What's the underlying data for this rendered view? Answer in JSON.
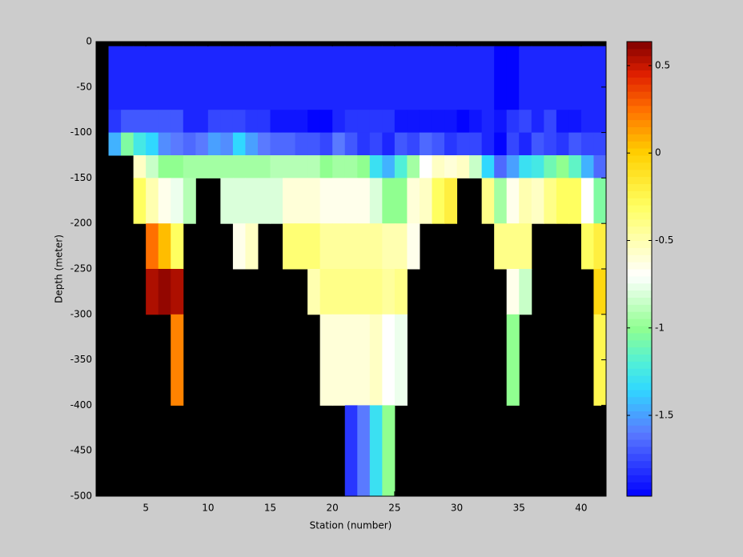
{
  "chart_data": {
    "type": "heatmap",
    "xlabel": "Station (number)",
    "ylabel": "Depth (meter)",
    "xlim": [
      1,
      42
    ],
    "ylim": [
      -500,
      0
    ],
    "xticks": [
      5,
      10,
      15,
      20,
      25,
      30,
      35,
      40
    ],
    "yticks": [
      0,
      -50,
      -100,
      -150,
      -200,
      -250,
      -300,
      -350,
      -400,
      -450,
      -500
    ],
    "x_edges": [
      2,
      3,
      4,
      5,
      6,
      7,
      8,
      9,
      10,
      11,
      12,
      13,
      14,
      15,
      16,
      17,
      18,
      19,
      20,
      21,
      22,
      23,
      24,
      25,
      26,
      27,
      28,
      29,
      30,
      31,
      32,
      33,
      34,
      35,
      36,
      37,
      38,
      39,
      40,
      41,
      42
    ],
    "y_edges": [
      -5,
      -75,
      -100,
      -125,
      -150,
      -200,
      -250,
      -300,
      -400,
      -500
    ],
    "values": [
      [
        -1.85,
        -1.85,
        -1.85,
        -1.85,
        -1.85,
        -1.85,
        -1.85,
        -1.85,
        -1.85,
        -1.85,
        -1.85,
        -1.85,
        -1.85,
        -1.85,
        -1.85,
        -1.85,
        -1.85,
        -1.85,
        -1.85,
        -1.85,
        -1.85,
        -1.85,
        -1.85,
        -1.85,
        -1.85,
        -1.85,
        -1.85,
        -1.85,
        -1.85,
        -1.85,
        -1.85,
        -1.95,
        -1.95,
        -1.85,
        -1.85,
        -1.85,
        -1.85,
        -1.85,
        -1.85,
        -1.85
      ],
      [
        -1.8,
        -1.7,
        -1.7,
        -1.7,
        -1.7,
        -1.7,
        -1.85,
        -1.85,
        -1.75,
        -1.75,
        -1.75,
        -1.8,
        -1.8,
        -1.9,
        -1.9,
        -1.9,
        -1.95,
        -1.95,
        -1.85,
        -1.8,
        -1.8,
        -1.8,
        -1.8,
        -1.9,
        -1.9,
        -1.9,
        -1.9,
        -1.9,
        -1.95,
        -1.9,
        -1.85,
        -1.9,
        -1.8,
        -1.75,
        -1.85,
        -1.75,
        -1.9,
        -1.9,
        -1.85,
        -1.85
      ],
      [
        -1.45,
        -1.05,
        -1.25,
        -1.35,
        -1.55,
        -1.6,
        -1.65,
        -1.6,
        -1.5,
        -1.55,
        -1.35,
        -1.5,
        -1.6,
        -1.65,
        -1.65,
        -1.7,
        -1.7,
        -1.75,
        -1.6,
        -1.7,
        -1.8,
        -1.75,
        -1.85,
        -1.7,
        -1.75,
        -1.65,
        -1.7,
        -1.8,
        -1.75,
        -1.75,
        -1.85,
        -1.95,
        -1.75,
        -1.85,
        -1.7,
        -1.75,
        -1.8,
        -1.7,
        -1.75,
        -1.75
      ],
      [
        null,
        null,
        -0.55,
        -0.85,
        -1.0,
        -1.0,
        -0.95,
        -0.95,
        -0.95,
        -0.95,
        -0.95,
        -0.95,
        -0.95,
        -0.9,
        -0.9,
        -0.9,
        -0.9,
        -1.0,
        -0.95,
        -0.95,
        -1.0,
        -1.3,
        -1.45,
        -1.2,
        -0.95,
        -0.7,
        -0.55,
        -0.6,
        -0.55,
        -0.85,
        -1.35,
        -1.65,
        -1.5,
        -1.3,
        -1.25,
        -1.1,
        -1.0,
        -1.15,
        -1.45,
        -1.65
      ],
      [
        null,
        null,
        -0.3,
        -0.5,
        -0.65,
        -0.75,
        -0.9,
        null,
        null,
        -0.8,
        -0.8,
        -0.8,
        -0.8,
        -0.8,
        -0.6,
        -0.6,
        -0.6,
        -0.65,
        -0.65,
        -0.65,
        -0.65,
        -0.8,
        -1.0,
        -1.0,
        -0.6,
        -0.55,
        -0.3,
        -0.2,
        null,
        null,
        -0.4,
        -0.95,
        -0.65,
        -0.5,
        -0.55,
        -0.4,
        -0.3,
        -0.3,
        -0.7,
        -1.05
      ],
      [
        null,
        null,
        null,
        0.25,
        0.05,
        -0.3,
        null,
        null,
        null,
        null,
        -0.65,
        -0.55,
        null,
        null,
        -0.35,
        -0.35,
        -0.35,
        -0.45,
        -0.45,
        -0.45,
        -0.45,
        -0.45,
        -0.5,
        -0.5,
        -0.65,
        null,
        null,
        null,
        null,
        null,
        null,
        -0.4,
        -0.4,
        -0.4,
        null,
        null,
        null,
        null,
        -0.3,
        -0.2
      ],
      [
        null,
        null,
        null,
        0.55,
        0.6,
        0.55,
        null,
        null,
        null,
        null,
        null,
        null,
        null,
        null,
        null,
        null,
        -0.5,
        -0.4,
        -0.4,
        -0.4,
        -0.4,
        -0.4,
        -0.45,
        -0.4,
        null,
        null,
        null,
        null,
        null,
        null,
        null,
        null,
        -0.65,
        -0.85,
        null,
        null,
        null,
        null,
        null,
        -0.05
      ],
      [
        null,
        null,
        null,
        null,
        null,
        0.2,
        null,
        null,
        null,
        null,
        null,
        null,
        null,
        null,
        null,
        null,
        null,
        -0.6,
        -0.6,
        -0.6,
        -0.6,
        -0.55,
        -0.7,
        -0.75,
        null,
        null,
        null,
        null,
        null,
        null,
        null,
        null,
        -1.0,
        null,
        null,
        null,
        null,
        null,
        null,
        -0.25
      ],
      [
        null,
        null,
        null,
        null,
        null,
        null,
        null,
        null,
        null,
        null,
        null,
        null,
        null,
        null,
        null,
        null,
        null,
        null,
        null,
        -1.8,
        -1.6,
        -1.3,
        -1.0,
        null,
        null,
        null,
        null,
        null,
        null,
        null,
        null,
        null,
        null,
        null,
        null,
        null,
        null,
        null,
        null,
        null
      ]
    ],
    "nan_color": "#000000",
    "clim": [
      -1.962,
      0.637
    ],
    "cticks": [
      -1.5,
      -1,
      -0.5,
      0,
      0.5
    ],
    "colormap": [
      [
        -1.962,
        "#0000ff"
      ],
      [
        -1.6,
        "#5a7aff"
      ],
      [
        -1.35,
        "#30d8ff"
      ],
      [
        -1.2,
        "#50f0d8"
      ],
      [
        -1.0,
        "#90ff90"
      ],
      [
        -0.85,
        "#c8ffc8"
      ],
      [
        -0.7,
        "#ffffff"
      ],
      [
        -0.5,
        "#ffffb0"
      ],
      [
        -0.3,
        "#ffff60"
      ],
      [
        0,
        "#ffd000"
      ],
      [
        0.25,
        "#ff7000"
      ],
      [
        0.45,
        "#e02000"
      ],
      [
        0.637,
        "#800000"
      ]
    ]
  }
}
